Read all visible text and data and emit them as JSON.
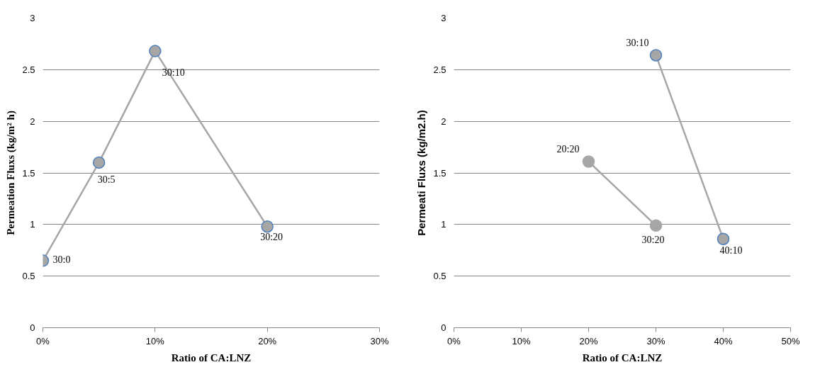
{
  "chart_data": [
    {
      "type": "line",
      "xlabel": "Ratio of CA:LNZ",
      "ylabel": "Permeation Fluxs (kg/m² h)",
      "marker": "circle",
      "line_style": "solid",
      "grid": "y",
      "xlim": [
        0,
        30
      ],
      "xticks": [
        {
          "value": 0,
          "label": "0%"
        },
        {
          "value": 10,
          "label": "10%"
        },
        {
          "value": 20,
          "label": "20%"
        },
        {
          "value": 30,
          "label": "30%"
        }
      ],
      "ylim": [
        0,
        3
      ],
      "yticks": [
        0,
        0.5,
        1,
        1.5,
        2,
        2.5,
        3
      ],
      "series": [
        {
          "color": "#4f81bd",
          "x": [
            0,
            5,
            10,
            20
          ],
          "values": [
            0.65,
            1.6,
            2.68,
            0.98
          ]
        }
      ],
      "annotations": [
        {
          "text": "30:0",
          "x": 0,
          "y": 0.65
        },
        {
          "text": "30:5",
          "x": 5,
          "y": 1.6
        },
        {
          "text": "30:10",
          "x": 10,
          "y": 2.68
        },
        {
          "text": "30:20",
          "x": 20,
          "y": 0.98
        }
      ]
    },
    {
      "type": "line",
      "xlabel": "Ratio of CA:LNZ",
      "ylabel": "Permeati Fluxs (kg/m2.h)",
      "marker": "circle",
      "line_style": "solid",
      "grid": "y",
      "xlim": [
        0,
        50
      ],
      "xticks": [
        {
          "value": 0,
          "label": "0%"
        },
        {
          "value": 10,
          "label": "10%"
        },
        {
          "value": 20,
          "label": "20%"
        },
        {
          "value": 30,
          "label": "30%"
        },
        {
          "value": 40,
          "label": "40%"
        },
        {
          "value": 50,
          "label": "50%"
        }
      ],
      "ylim": [
        0,
        3
      ],
      "yticks": [
        0,
        0.5,
        1,
        1.5,
        2,
        2.5,
        3
      ],
      "series": [
        {
          "color": "#a6a6a6",
          "x": [
            20,
            30
          ],
          "values": [
            1.61,
            0.99
          ]
        },
        {
          "color": "#4f81bd",
          "x": [
            30,
            40
          ],
          "values": [
            2.64,
            0.86
          ]
        }
      ],
      "annotations": [
        {
          "text": "20:20",
          "x": 20,
          "y": 1.61
        },
        {
          "text": "30:20",
          "x": 30,
          "y": 0.99
        },
        {
          "text": "30:10",
          "x": 30,
          "y": 2.64
        },
        {
          "text": "40:10",
          "x": 40,
          "y": 0.86
        }
      ]
    }
  ]
}
